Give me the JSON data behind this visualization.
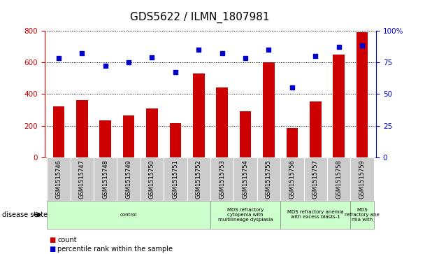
{
  "title": "GDS5622 / ILMN_1807981",
  "samples": [
    "GSM1515746",
    "GSM1515747",
    "GSM1515748",
    "GSM1515749",
    "GSM1515750",
    "GSM1515751",
    "GSM1515752",
    "GSM1515753",
    "GSM1515754",
    "GSM1515755",
    "GSM1515756",
    "GSM1515757",
    "GSM1515758",
    "GSM1515759"
  ],
  "counts": [
    320,
    360,
    235,
    265,
    310,
    215,
    530,
    440,
    290,
    600,
    185,
    355,
    650,
    790
  ],
  "percentile_ranks": [
    78,
    82,
    72,
    75,
    79,
    67,
    85,
    82,
    78,
    85,
    55,
    80,
    87,
    88
  ],
  "bar_color": "#cc0000",
  "dot_color": "#0000cc",
  "ylim_left": [
    0,
    800
  ],
  "ylim_right": [
    0,
    100
  ],
  "yticks_left": [
    0,
    200,
    400,
    600,
    800
  ],
  "yticks_right": [
    0,
    25,
    50,
    75,
    100
  ],
  "yticklabels_right": [
    "0",
    "25",
    "50",
    "75",
    "100%"
  ],
  "disease_groups": [
    {
      "label": "control",
      "start": 0,
      "end": 7,
      "color": "#ccffcc"
    },
    {
      "label": "MDS refractory\ncytopenia with\nmultilineage dysplasia",
      "start": 7,
      "end": 10,
      "color": "#ccffcc"
    },
    {
      "label": "MDS refractory anemia\nwith excess blasts-1",
      "start": 10,
      "end": 13,
      "color": "#ccffcc"
    },
    {
      "label": "MDS\nrefractory ane\nmia with",
      "start": 13,
      "end": 14,
      "color": "#ccffcc"
    }
  ],
  "grid_color": "#888888",
  "background_color": "#ffffff",
  "tick_label_color_left": "#cc0000",
  "tick_label_color_right": "#0000cc",
  "bar_width": 0.5,
  "sample_box_color": "#cccccc",
  "title_fontsize": 11,
  "bar_fontsize": 7,
  "label_fontsize": 6
}
